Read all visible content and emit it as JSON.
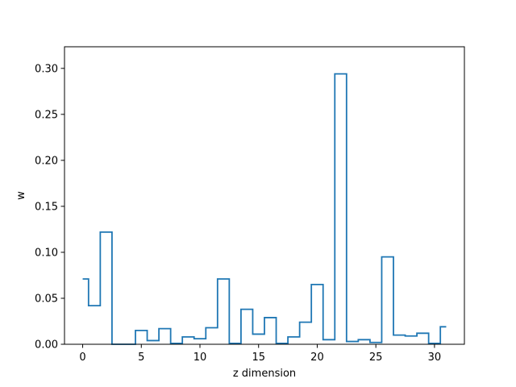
{
  "chart_data": {
    "type": "line",
    "drawstyle": "steps-mid",
    "title": "",
    "xlabel": "z dimension",
    "ylabel": "w",
    "xlim": [
      -1.55,
      32.55
    ],
    "ylim": [
      0,
      0.3235
    ],
    "xticks": [
      0,
      5,
      10,
      15,
      20,
      25,
      30
    ],
    "yticks": [
      0.0,
      0.05,
      0.1,
      0.15,
      0.2,
      0.25,
      0.3
    ],
    "ytick_labels": [
      "0.00",
      "0.05",
      "0.10",
      "0.15",
      "0.20",
      "0.25",
      "0.30"
    ],
    "grid": false,
    "legend": "none",
    "color": "#1f77b4",
    "series": [
      {
        "x": [
          0,
          1,
          2,
          3,
          4,
          5,
          6,
          7,
          8,
          9,
          10,
          11,
          12,
          13,
          14,
          15,
          16,
          17,
          18,
          19,
          20,
          21,
          22,
          23,
          24,
          25,
          26,
          27,
          28,
          29,
          30,
          31
        ],
        "values": [
          0.071,
          0.042,
          0.122,
          0.0,
          0.0,
          0.015,
          0.004,
          0.017,
          0.001,
          0.008,
          0.006,
          0.018,
          0.071,
          0.001,
          0.038,
          0.011,
          0.029,
          0.001,
          0.008,
          0.024,
          0.065,
          0.005,
          0.294,
          0.003,
          0.005,
          0.002,
          0.095,
          0.01,
          0.009,
          0.012,
          0.001,
          0.019
        ]
      }
    ]
  }
}
